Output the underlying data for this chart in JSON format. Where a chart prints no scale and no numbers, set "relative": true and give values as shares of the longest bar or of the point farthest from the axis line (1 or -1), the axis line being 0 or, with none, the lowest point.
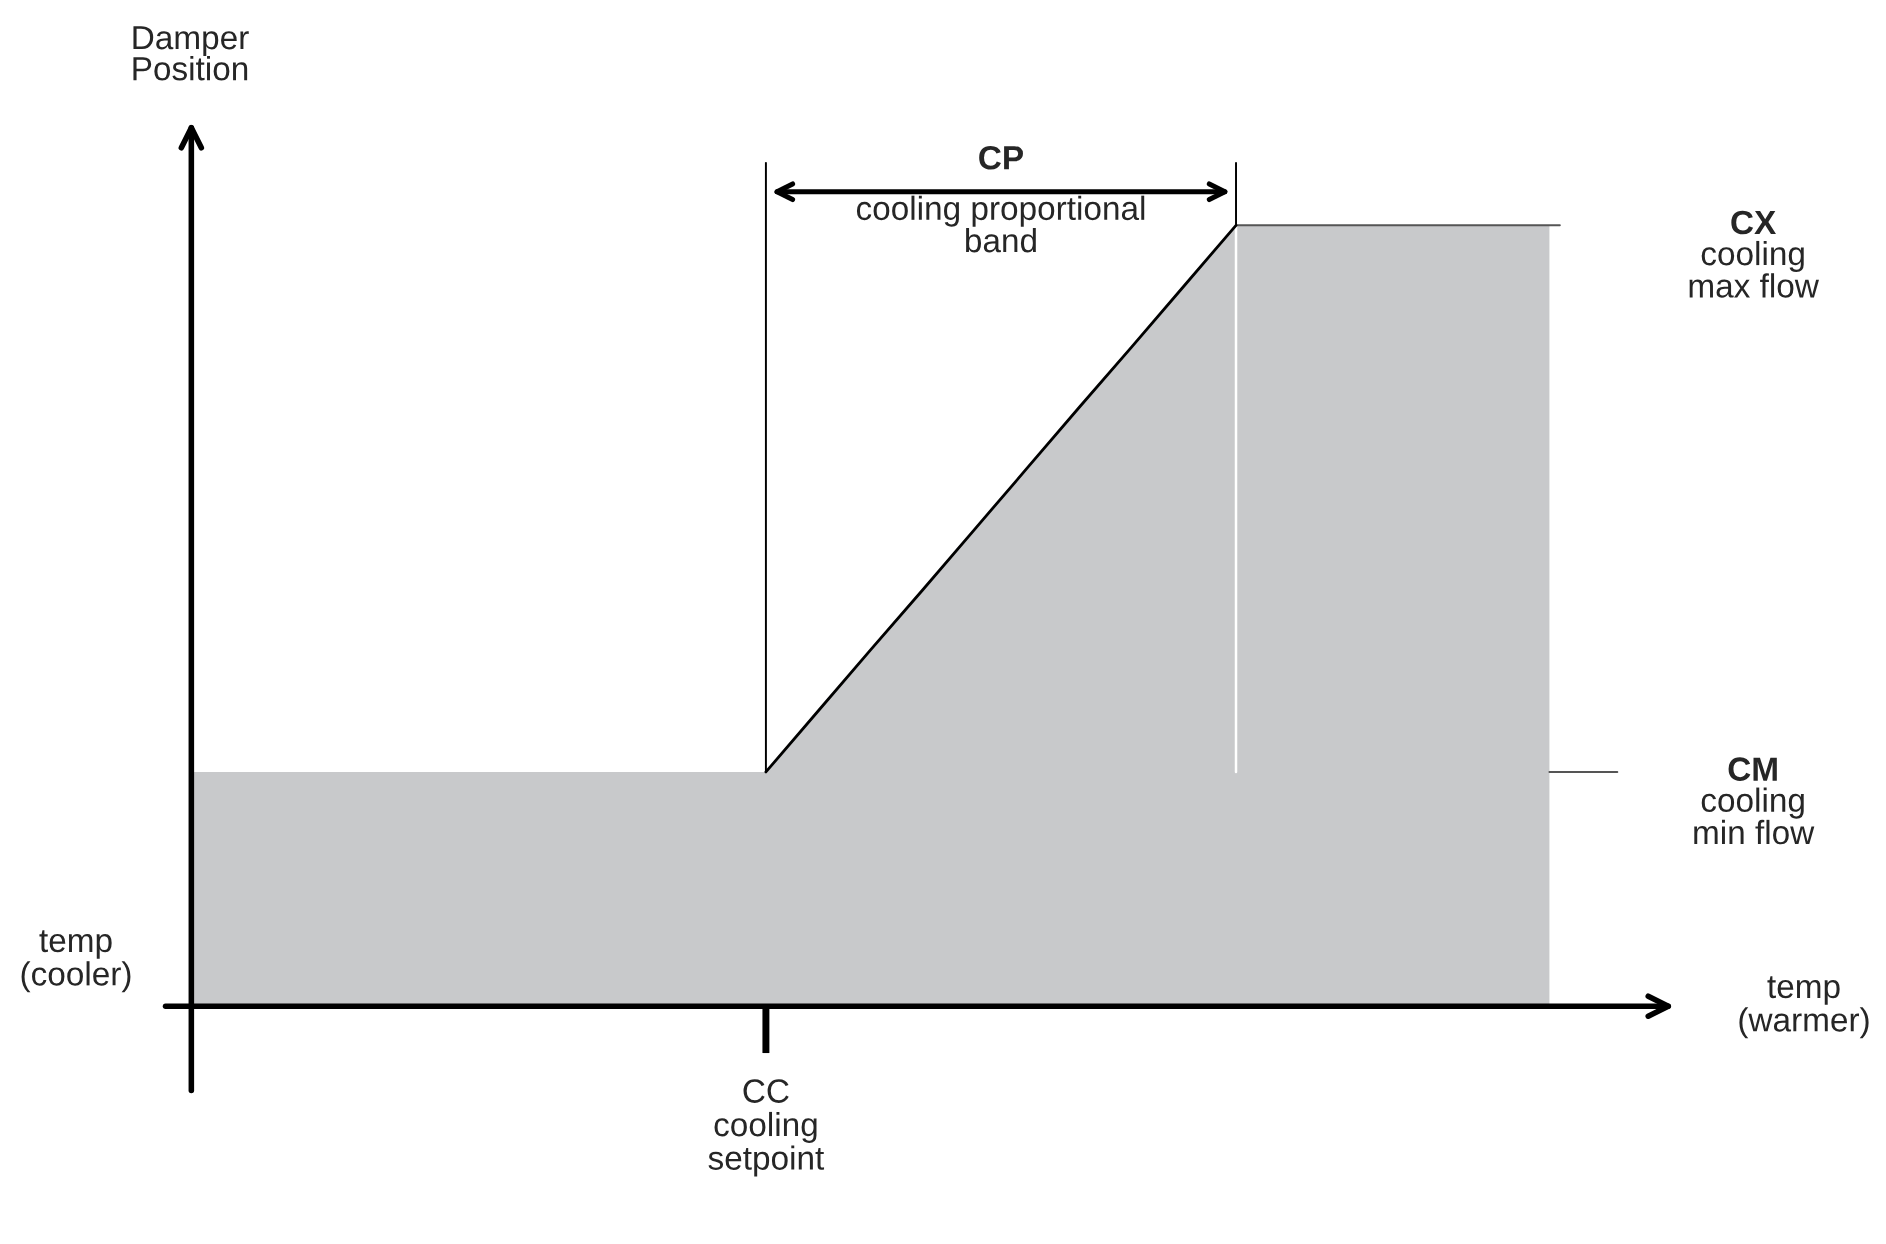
{
  "chart_data": {
    "type": "area",
    "relative": true,
    "xlabel": "temp\n(warmer)",
    "ylabel": "Damper\nPosition",
    "categories": [
      null,
      null,
      null,
      null,
      null,
      null,
      null,
      null,
      null,
      null,
      null,
      null,
      null,
      null,
      null,
      null,
      null,
      null,
      null,
      null,
      null,
      null,
      null,
      null,
      null,
      null,
      null
    ],
    "values": [
      0.3,
      0.3,
      0.3,
      0.3,
      0.3,
      0.3,
      0.3,
      0.3,
      0.3,
      0.3,
      0.3,
      0.3,
      0.378,
      0.456,
      0.533,
      0.611,
      0.689,
      0.767,
      0.844,
      0.922,
      1,
      1,
      1,
      1,
      1,
      1,
      1
    ],
    "color": "#c8c9cb",
    "annotations": [
      "temp\n(cooler)",
      "CP\ncooling proportional\nband",
      "CX\ncooling\nmax flow",
      "CM\ncooling\nmin flow",
      "CC\ncooling\nsetpoint"
    ]
  }
}
